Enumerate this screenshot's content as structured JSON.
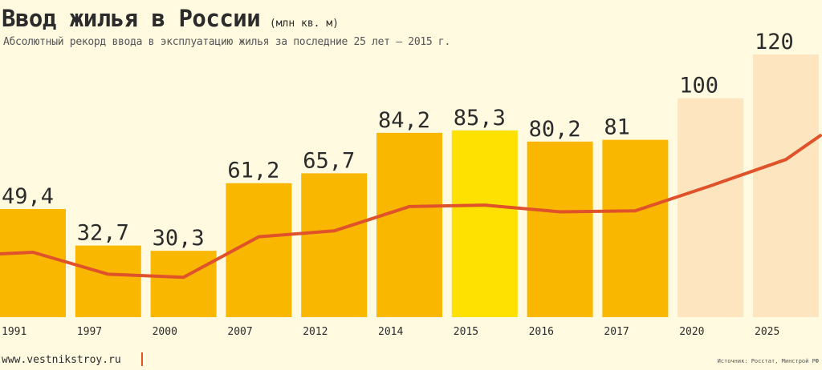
{
  "header": {
    "title": "Ввод жилья в России",
    "unit": "(млн кв. м)",
    "subtitle": "Абсолютный рекорд ввода в эксплуатацию жилья за последние 25 лет — 2015 г."
  },
  "footer": {
    "site": "www.vestnikstroy.ru",
    "source": "Источник: Росстат, Минстрой РФ"
  },
  "colors": {
    "bar": "#f9b700",
    "highlight": "#ffe100",
    "forecast": "#fde5c0",
    "line": "#e0522a",
    "text": "#2b2b2b"
  },
  "chart_data": {
    "type": "bar",
    "title": "Ввод жилья в России",
    "categories": [
      "1991",
      "1997",
      "2000",
      "2007",
      "2012",
      "2014",
      "2015",
      "2016",
      "2017",
      "2020",
      "2025"
    ],
    "values": [
      49.4,
      32.7,
      30.3,
      61.2,
      65.7,
      84.2,
      85.3,
      80.2,
      81,
      100,
      120
    ],
    "labels": [
      "49,4",
      "32,7",
      "30,3",
      "61,2",
      "65,7",
      "84,2",
      "85,3",
      "80,2",
      "81",
      "100",
      "120"
    ],
    "highlight": [
      "2015"
    ],
    "forecast": [
      "2020",
      "2025"
    ],
    "trend_line": true,
    "ylim": [
      0,
      120
    ],
    "grid": false,
    "legend": "none"
  }
}
